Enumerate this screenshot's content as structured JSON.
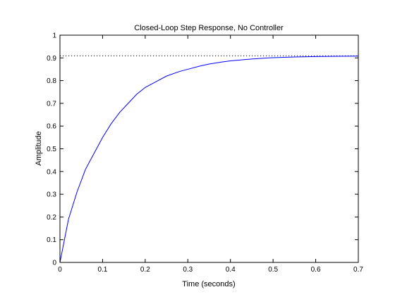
{
  "chart_data": {
    "type": "line",
    "title": "Closed-Loop Step Response, No Controller",
    "xlabel": "Time (seconds)",
    "ylabel": "Amplitude",
    "xlim": [
      0,
      0.7
    ],
    "ylim": [
      0,
      1
    ],
    "xticks": [
      0,
      0.1,
      0.2,
      0.3,
      0.4,
      0.5,
      0.6,
      0.7
    ],
    "xtick_labels": [
      "0",
      "0.1",
      "0.2",
      "0.3",
      "0.4",
      "0.5",
      "0.6",
      "0.7"
    ],
    "yticks": [
      0,
      0.1,
      0.2,
      0.3,
      0.4,
      0.5,
      0.6,
      0.7,
      0.8,
      0.9,
      1
    ],
    "ytick_labels": [
      "0",
      "0.1",
      "0.2",
      "0.3",
      "0.4",
      "0.5",
      "0.6",
      "0.7",
      "0.8",
      "0.9",
      "1"
    ],
    "grid": false,
    "legend": false,
    "steady_state_value": 0.909,
    "series": [
      {
        "color": "#0000ff",
        "x": [
          0,
          0.02,
          0.04,
          0.06,
          0.08,
          0.1,
          0.12,
          0.14,
          0.16,
          0.18,
          0.2,
          0.22,
          0.25,
          0.28,
          0.3,
          0.33,
          0.35,
          0.38,
          0.4,
          0.43,
          0.45,
          0.48,
          0.5,
          0.55,
          0.6,
          0.65,
          0.7
        ],
        "y": [
          0,
          0.19,
          0.31,
          0.41,
          0.48,
          0.55,
          0.61,
          0.66,
          0.7,
          0.74,
          0.77,
          0.79,
          0.82,
          0.84,
          0.85,
          0.865,
          0.873,
          0.882,
          0.887,
          0.892,
          0.895,
          0.899,
          0.901,
          0.904,
          0.906,
          0.907,
          0.908
        ]
      }
    ],
    "reference_line": {
      "style": "dotted",
      "color": "#000000"
    }
  }
}
